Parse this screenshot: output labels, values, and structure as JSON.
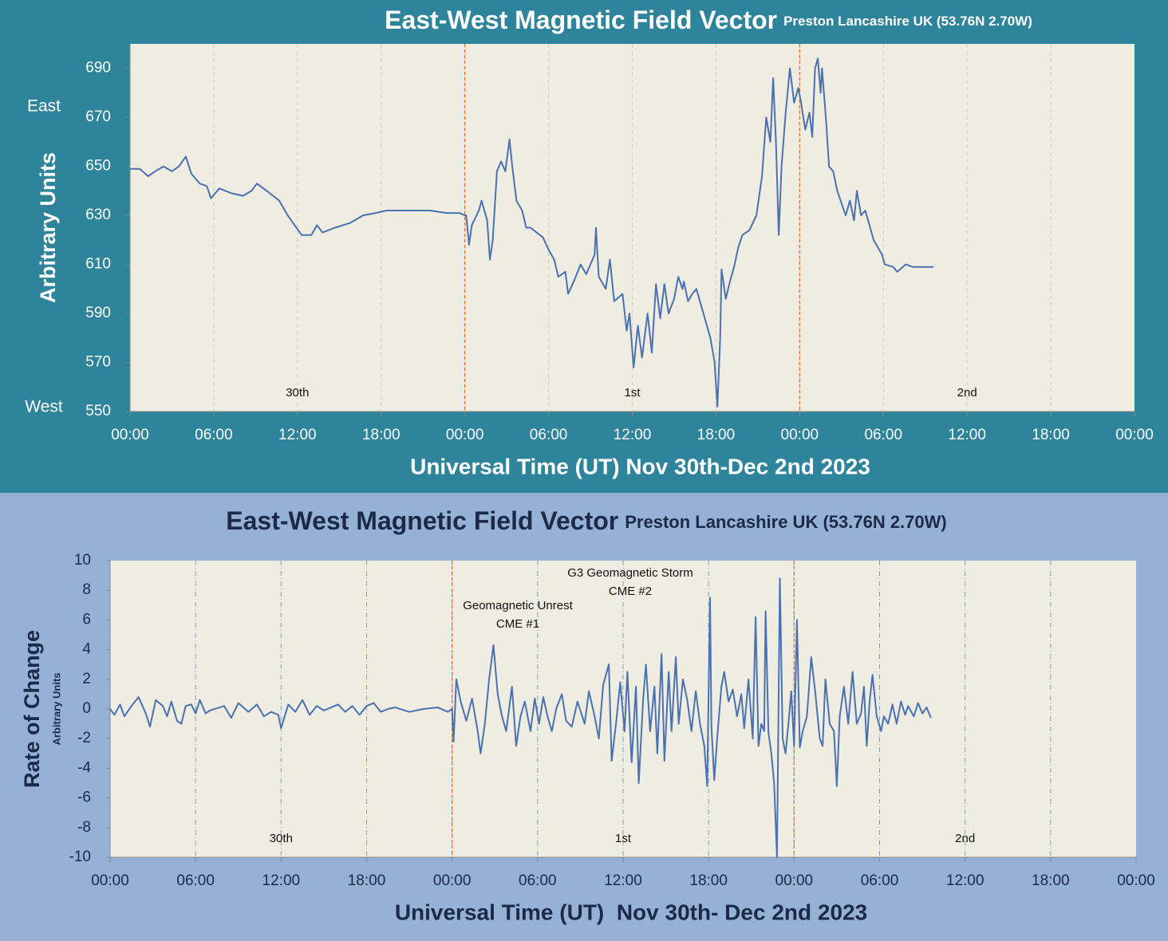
{
  "chart_data": [
    {
      "type": "line",
      "title": "East-West Magnetic Field Vector",
      "subtitle": "Preston Lancashire UK (53.76N 2.70W)",
      "y_label": "Arbitrary Units",
      "x_label": "Universal Time (UT) Nov 30th-Dec 2nd 2023",
      "side_labels": [
        "East",
        "West"
      ],
      "day_labels": [
        "30th",
        "1st",
        "2nd"
      ],
      "color": "#4a72b0",
      "separator_color": "#e2772f",
      "grid": true,
      "xlim": [
        0,
        72
      ],
      "xticks": [
        {
          "value": 0,
          "label": "00:00"
        },
        {
          "value": 6,
          "label": "06:00"
        },
        {
          "value": 12,
          "label": "12:00"
        },
        {
          "value": 18,
          "label": "18:00"
        },
        {
          "value": 24,
          "label": "00:00"
        },
        {
          "value": 30,
          "label": "06:00"
        },
        {
          "value": 36,
          "label": "12:00"
        },
        {
          "value": 42,
          "label": "18:00"
        },
        {
          "value": 48,
          "label": "00:00"
        },
        {
          "value": 54,
          "label": "06:00"
        },
        {
          "value": 60,
          "label": "12:00"
        },
        {
          "value": 66,
          "label": "18:00"
        },
        {
          "value": 72,
          "label": "00:00"
        }
      ],
      "ylim": [
        550,
        700
      ],
      "yticks": [
        550,
        570,
        590,
        610,
        630,
        650,
        670,
        690
      ],
      "x": [
        0,
        0.7,
        1.3,
        1.8,
        2.4,
        3,
        3.5,
        4,
        4.4,
        5,
        5.5,
        5.8,
        6.4,
        7.3,
        8.1,
        8.7,
        9.1,
        9.8,
        10.7,
        11.3,
        11.8,
        12.3,
        13,
        13.4,
        13.8,
        14.7,
        15.8,
        16.7,
        17.6,
        18.4,
        19.3,
        20.4,
        21.5,
        22.7,
        23.6,
        24,
        24.1,
        24.3,
        24.5,
        25,
        25.2,
        25.6,
        25.8,
        26,
        26.3,
        26.6,
        26.9,
        27.2,
        27.4,
        27.7,
        28.1,
        28.4,
        28.7,
        29.6,
        30,
        30.4,
        30.7,
        31.2,
        31.4,
        31.8,
        32.3,
        32.7,
        33.3,
        33.4,
        33.6,
        34.1,
        34.4,
        34.7,
        35.3,
        35.6,
        35.8,
        36.1,
        36.4,
        36.7,
        37.1,
        37.4,
        37.7,
        38,
        38.3,
        38.6,
        39,
        39.3,
        39.6,
        39.7,
        40,
        40.3,
        40.6,
        41,
        41.3,
        41.6,
        41.9,
        42.1,
        42.3,
        42.4,
        42.7,
        43,
        43.3,
        43.6,
        43.9,
        44.4,
        44.9,
        45.3,
        45.6,
        45.9,
        46.1,
        46.3,
        46.5,
        46.7,
        47,
        47.3,
        47.6,
        47.9,
        48.1,
        48.4,
        48.7,
        48.9,
        49.1,
        49.3,
        49.5,
        49.6,
        49.9,
        50.1,
        50.4,
        50.7,
        51,
        51.3,
        51.6,
        51.9,
        52.1,
        52.4,
        52.7,
        53,
        53.3,
        53.6,
        53.9,
        54.1,
        54.7,
        55,
        55.6,
        56.1,
        56.7,
        57.6
      ],
      "values": [
        649,
        649,
        646,
        648,
        650,
        648,
        650,
        654,
        647,
        643,
        642,
        637,
        641,
        639,
        638,
        640,
        643,
        640,
        636,
        630,
        626,
        622,
        622,
        626,
        623,
        625,
        627,
        630,
        631,
        632,
        632,
        632,
        632,
        631,
        631,
        630,
        630,
        618,
        626,
        632,
        636,
        628,
        612,
        620,
        648,
        652,
        648,
        661,
        650,
        636,
        632,
        625,
        625,
        621,
        616,
        612,
        605,
        607,
        598,
        603,
        610,
        606,
        614,
        625,
        605,
        600,
        612,
        595,
        598,
        583,
        590,
        568,
        585,
        572,
        590,
        574,
        602,
        588,
        602,
        590,
        596,
        605,
        600,
        603,
        595,
        598,
        600,
        592,
        586,
        580,
        570,
        552,
        580,
        608,
        596,
        603,
        609,
        617,
        622,
        624,
        630,
        646,
        670,
        660,
        686,
        660,
        622,
        650,
        672,
        690,
        676,
        682,
        676,
        665,
        672,
        662,
        690,
        694,
        680,
        690,
        668,
        650,
        648,
        640,
        635,
        630,
        636,
        628,
        640,
        630,
        632,
        626,
        620,
        617,
        614,
        610,
        609,
        607,
        610,
        609,
        609,
        609
      ]
    },
    {
      "type": "line",
      "title": "East-West Magnetic Field Vector",
      "subtitle": "Preston Lancashire UK (53.76N 2.70W)",
      "y_label": "Rate of Change",
      "y_sublabel": "Arbitrary Units",
      "x_label": "Universal Time (UT)  Nov 30th- Dec 2nd 2023",
      "day_labels": [
        "30th",
        "1st",
        "2nd"
      ],
      "annotations": [
        [
          "Geomagnetic Unrest",
          "CME #1"
        ],
        [
          "G3 Geomagnetic Storm",
          "CME #2"
        ]
      ],
      "color": "#4a72b0",
      "separator_color": "#e2772f",
      "grid": true,
      "xlim": [
        0,
        72
      ],
      "xticks": [
        {
          "value": 0,
          "label": "00:00"
        },
        {
          "value": 6,
          "label": "06:00"
        },
        {
          "value": 12,
          "label": "12:00"
        },
        {
          "value": 18,
          "label": "18:00"
        },
        {
          "value": 24,
          "label": "00:00"
        },
        {
          "value": 30,
          "label": "06:00"
        },
        {
          "value": 36,
          "label": "12:00"
        },
        {
          "value": 42,
          "label": "18:00"
        },
        {
          "value": 48,
          "label": "00:00"
        },
        {
          "value": 54,
          "label": "06:00"
        },
        {
          "value": 60,
          "label": "12:00"
        },
        {
          "value": 66,
          "label": "18:00"
        },
        {
          "value": 72,
          "label": "00:00"
        }
      ],
      "ylim": [
        -10,
        10
      ],
      "yticks": [
        -10,
        -8,
        -6,
        -4,
        -2,
        0,
        2,
        4,
        6,
        8,
        10
      ],
      "x": [
        0,
        0.3,
        0.7,
        1,
        1.5,
        2,
        2.5,
        2.8,
        3.2,
        3.7,
        4,
        4.3,
        4.7,
        5,
        5.3,
        5.7,
        6,
        6.3,
        6.7,
        7,
        8,
        8.5,
        9,
        9.7,
        10.3,
        10.8,
        11.3,
        11.8,
        12,
        12.5,
        13,
        13.5,
        14,
        14.5,
        15,
        16,
        16.5,
        17,
        17.5,
        18,
        18.5,
        19,
        19.5,
        20,
        21,
        22,
        23,
        23.7,
        24,
        24.1,
        24.3,
        24.6,
        25,
        25.4,
        25.8,
        26,
        26.3,
        26.6,
        26.9,
        27.2,
        27.5,
        27.8,
        28.2,
        28.5,
        28.8,
        29.1,
        29.5,
        29.8,
        30.1,
        30.4,
        30.7,
        31,
        31.3,
        31.7,
        32,
        32.4,
        32.8,
        33.3,
        33.6,
        34,
        34.3,
        34.6,
        35,
        35.2,
        35.5,
        35.8,
        36.1,
        36.3,
        36.6,
        36.9,
        37.1,
        37.4,
        37.6,
        37.9,
        38.2,
        38.4,
        38.7,
        38.9,
        39.2,
        39.4,
        39.7,
        39.9,
        40.2,
        40.5,
        40.8,
        41.1,
        41.4,
        41.7,
        41.9,
        42.1,
        42.2,
        42.4,
        42.6,
        42.9,
        43.1,
        43.4,
        43.7,
        44,
        44.3,
        44.5,
        44.8,
        45.1,
        45.3,
        45.5,
        45.7,
        45.9,
        46,
        46.2,
        46.4,
        46.6,
        46.8,
        47,
        47.2,
        47.4,
        47.6,
        47.8,
        48,
        48.2,
        48.4,
        48.6,
        48.9,
        49.2,
        49.5,
        49.8,
        50,
        50.2,
        50.5,
        50.8,
        51,
        51.2,
        51.5,
        51.8,
        52.1,
        52.4,
        52.7,
        52.9,
        53.1,
        53.3,
        53.5,
        53.8,
        54.1,
        54.3,
        54.6,
        54.9,
        55.2,
        55.5,
        55.8,
        56,
        56.4,
        56.7,
        57,
        57.3,
        57.6
      ],
      "values": [
        0,
        -0.4,
        0.3,
        -0.5,
        0.2,
        0.8,
        -0.3,
        -1.2,
        0.6,
        0.2,
        -0.5,
        0.5,
        -0.8,
        -1,
        0.2,
        0.3,
        -0.3,
        0.6,
        -0.3,
        -0.1,
        0.2,
        -0.6,
        0.4,
        -0.2,
        0.3,
        -0.5,
        -0.2,
        -0.4,
        -1.3,
        0.3,
        -0.2,
        0.6,
        -0.4,
        0.2,
        -0.1,
        0.3,
        -0.2,
        0.2,
        -0.4,
        0.2,
        0.4,
        -0.2,
        0,
        0.1,
        -0.2,
        0,
        0.1,
        -0.2,
        0,
        -2.2,
        2,
        0.5,
        -0.8,
        0.7,
        -1.5,
        -3,
        -1,
        2,
        4.3,
        1,
        -0.5,
        -1.5,
        1.5,
        -2.5,
        -0.5,
        0.5,
        -1.5,
        0.7,
        -1,
        0.8,
        -0.5,
        -1.5,
        0,
        1,
        -0.8,
        -1.2,
        0.5,
        -1,
        1.2,
        -0.5,
        -2,
        1.6,
        3,
        -3.5,
        -1,
        1.8,
        -1.5,
        2.5,
        -3.6,
        1.5,
        -5,
        0.5,
        3,
        -1.5,
        1.5,
        -3,
        3.7,
        -3.5,
        2.5,
        -1.5,
        3.5,
        -1,
        2,
        0.6,
        -1.5,
        1.2,
        -1,
        -2.5,
        -5.2,
        7.5,
        -1.2,
        -4.8,
        -2,
        1.5,
        2.5,
        0.5,
        1.3,
        -0.5,
        1,
        -1.3,
        2,
        -2,
        6.2,
        -2.5,
        -1,
        -1.5,
        6.6,
        -1.6,
        -3,
        -5,
        -10,
        8.8,
        -2,
        -3,
        -1,
        1.2,
        -2.5,
        6,
        -2.6,
        -1.5,
        -0.5,
        3.5,
        1,
        -2,
        -2.5,
        2,
        -1,
        -1.5,
        -5.2,
        -0.5,
        1.5,
        -1,
        2.5,
        -1,
        -0.3,
        1.5,
        -2.5,
        0.5,
        2.3,
        -0.5,
        -1.5,
        -0.5,
        -1,
        0.3,
        -1,
        0.5,
        -0.4,
        0.2,
        -0.5,
        0.4,
        -0.3,
        0.1,
        -0.6
      ]
    }
  ]
}
